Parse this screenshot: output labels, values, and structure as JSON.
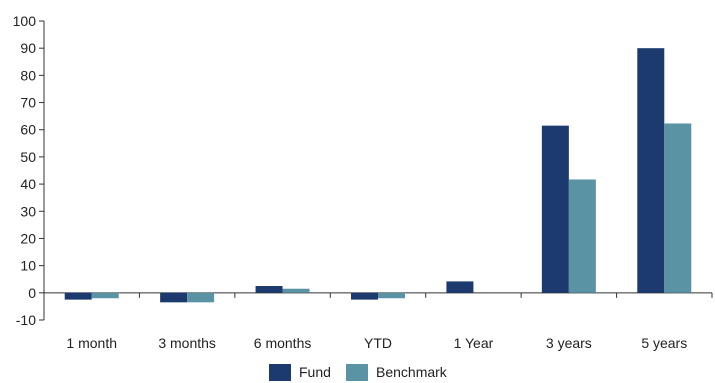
{
  "chart_data": {
    "type": "bar",
    "categories": [
      "1 month",
      "3 months",
      "6 months",
      "YTD",
      "1 Year",
      "3 years",
      "5 years"
    ],
    "series": [
      {
        "name": "Fund",
        "color": "#1c3a6e",
        "values": [
          -2.5,
          -3.5,
          2.5,
          -2.5,
          4.2,
          61.5,
          90.0
        ]
      },
      {
        "name": "Benchmark",
        "color": "#5a93a4",
        "values": [
          -2.0,
          -3.5,
          1.5,
          -2.0,
          0.0,
          41.7,
          62.3
        ]
      }
    ],
    "ylim": [
      -10,
      100
    ],
    "yticks": [
      -10,
      0,
      10,
      20,
      30,
      40,
      50,
      60,
      70,
      80,
      90,
      100
    ],
    "grid": false,
    "legend": "bottom-center"
  }
}
